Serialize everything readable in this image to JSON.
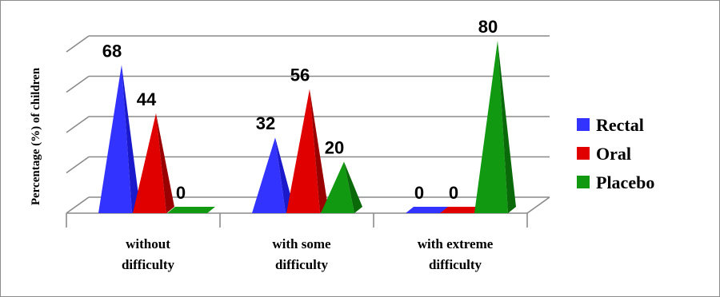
{
  "chart_data": {
    "type": "bar",
    "title": "",
    "xlabel": "",
    "ylabel": "Percentage (%) of children",
    "categories": [
      [
        "without",
        "difficulty"
      ],
      [
        "with some",
        "difficulty"
      ],
      [
        "with extreme",
        "difficulty"
      ]
    ],
    "series": [
      {
        "name": "Rectal",
        "values": [
          68,
          32,
          0
        ],
        "color": "#3333ff",
        "side": "#1a1acc"
      },
      {
        "name": "Oral",
        "values": [
          44,
          56,
          0
        ],
        "color": "#e00000",
        "side": "#9a0000"
      },
      {
        "name": "Placebo",
        "values": [
          0,
          20,
          80
        ],
        "color": "#119911",
        "side": "#0a6a0a"
      }
    ],
    "ylim": [
      0,
      80
    ],
    "grid": true,
    "legend": "right",
    "shape": "3d-pyramid"
  }
}
